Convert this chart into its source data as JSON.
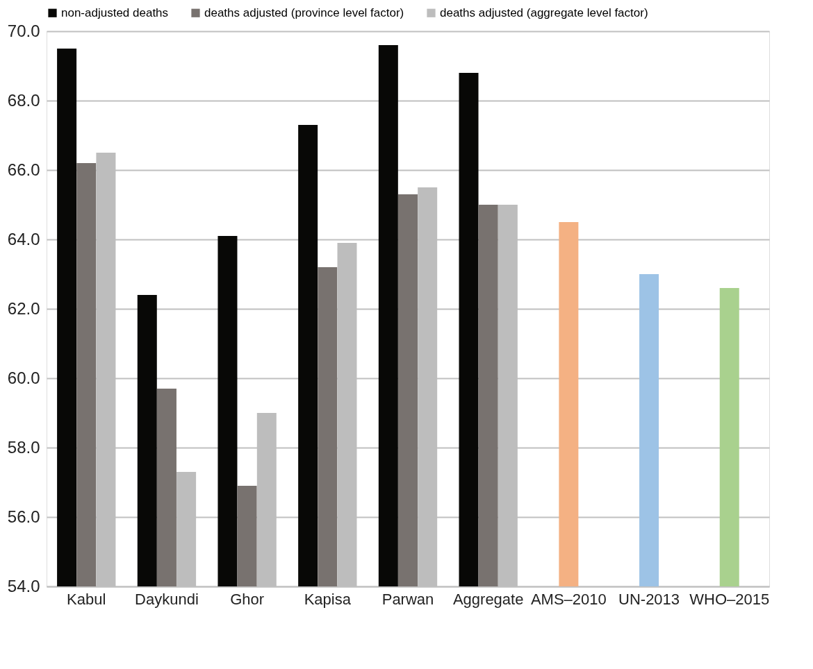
{
  "chart_data": {
    "type": "bar",
    "categories": [
      "Kabul",
      "Daykundi",
      "Ghor",
      "Kapisa",
      "Parwan",
      "Aggregate",
      "AMS–2010",
      "UN-2013",
      "WHO–2015"
    ],
    "series": [
      {
        "name": "non-adjusted deaths",
        "color": "#080806",
        "values": [
          69.5,
          62.4,
          64.1,
          67.3,
          69.6,
          68.8,
          null,
          null,
          null
        ]
      },
      {
        "name": "deaths adjusted (province level factor)",
        "color": "#78726f",
        "values": [
          66.2,
          59.7,
          56.9,
          63.2,
          65.3,
          65.0,
          null,
          null,
          null
        ]
      },
      {
        "name": "deaths adjusted (aggregate level factor)",
        "color": "#bdbdbd",
        "values": [
          66.5,
          57.3,
          59.0,
          63.9,
          65.5,
          65.0,
          null,
          null,
          null
        ]
      },
      {
        "colors": [
          null,
          null,
          null,
          null,
          null,
          null,
          "#f4b183",
          "#9dc3e6",
          "#a9d18e"
        ],
        "values": [
          null,
          null,
          null,
          null,
          null,
          null,
          64.5,
          63.0,
          62.6
        ]
      }
    ],
    "ylim": [
      54,
      70
    ],
    "yticks": [
      {
        "value": 54,
        "label": "54.0"
      },
      {
        "value": 56,
        "label": "56.0"
      },
      {
        "value": 58,
        "label": "58.0"
      },
      {
        "value": 60,
        "label": "60.0"
      },
      {
        "value": 62,
        "label": "62.0"
      },
      {
        "value": 64,
        "label": "64.0"
      },
      {
        "value": 66,
        "label": "66.0"
      },
      {
        "value": 68,
        "label": "68.0"
      },
      {
        "value": 70,
        "label": "70.0"
      }
    ],
    "grid": "y",
    "legend": "top"
  }
}
